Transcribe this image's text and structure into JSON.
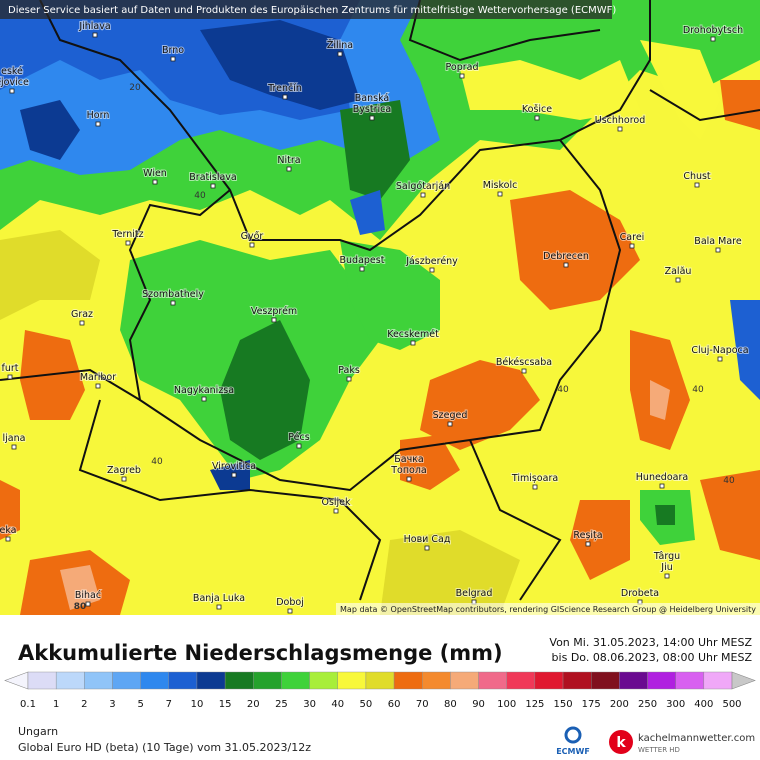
{
  "header": {
    "notice": "Dieser Service basiert auf Daten und Produkten des Europäischen Zentrums für mittelfristige Wettervorhersage (ECMWF)"
  },
  "map": {
    "cities": [
      [
        "Jihlava"
      ],
      [
        "Brno"
      ],
      [
        "Žilina"
      ],
      [
        "Poprad"
      ],
      [
        "Drohobytsch"
      ],
      [
        "eské",
        "ějovice"
      ],
      [
        "Trenčín"
      ],
      [
        "Banská",
        "Bystrica"
      ],
      [
        "Horn"
      ],
      [
        "Košice"
      ],
      [
        "Uschhorod"
      ],
      [
        "Nitra"
      ],
      [
        "Wien"
      ],
      [
        "Bratislava"
      ],
      [
        "Salgótarján"
      ],
      [
        "Miskolc"
      ],
      [
        "Chust"
      ],
      [
        "Ternitz"
      ],
      [
        "Győr"
      ],
      [
        "Carei"
      ],
      [
        "Bala Mare"
      ],
      [
        "Budapest"
      ],
      [
        "Jászberény"
      ],
      [
        "Debrecen"
      ],
      [
        "Szombathely"
      ],
      [
        "Zalău"
      ],
      [
        "Graz"
      ],
      [
        "Veszprém"
      ],
      [
        "Kecskemét"
      ],
      [
        "Cluj-Napoca"
      ],
      [
        "furt"
      ],
      [
        "Békéscsaba"
      ],
      [
        "Maribor"
      ],
      [
        "Paks"
      ],
      [
        "Nagykanizsa"
      ],
      [
        "Szeged"
      ],
      [
        "ljana"
      ],
      [
        "Pécs"
      ],
      [
        "Бачка",
        "Топола"
      ],
      [
        "Zagreb"
      ],
      [
        "Virovitica"
      ],
      [
        "Timișoara"
      ],
      [
        "Hunedoara"
      ],
      [
        "Osijek"
      ],
      [
        "Reșița"
      ],
      [
        "Нови Сад"
      ],
      [
        "Târgu",
        "Jiu"
      ],
      [
        "Bihać"
      ],
      [
        "Banja Luka"
      ],
      [
        "Doboj"
      ],
      [
        "Belgrad"
      ],
      [
        "Drobeta"
      ],
      [
        "eka"
      ]
    ],
    "contour_labels": [
      "20",
      "40",
      "40",
      "40",
      "40",
      "40",
      "80"
    ],
    "attribution": "Map data © OpenStreetMap contributors, rendering GIScience Research Group @ Heidelberg University"
  },
  "title": "Akkumulierte Niederschlagsmenge (mm)",
  "period": [
    "Von Mi. 31.05.2023, 14:00 Uhr MESZ",
    "bis Do. 08.06.2023, 08:00 Uhr MESZ"
  ],
  "legend": {
    "labels": [
      0.1,
      1,
      2,
      3,
      5,
      7,
      10,
      15,
      20,
      25,
      30,
      40,
      50,
      60,
      70,
      80,
      90,
      100,
      125,
      150,
      175,
      200,
      250,
      300,
      400,
      500
    ],
    "colors": [
      "#f4f4fc",
      "#dcdcf6",
      "#bcd8fa",
      "#90c4f8",
      "#5ea6f4",
      "#2f88ee",
      "#1d60d2",
      "#0c3a92",
      "#177a22",
      "#25a22c",
      "#3fd23a",
      "#a8ee3a",
      "#f8f83a",
      "#e0dc2a",
      "#ee6c10",
      "#f48a2e",
      "#f5aa78",
      "#f06a8a",
      "#f03858",
      "#e01830",
      "#b01020",
      "#80101e",
      "#6a0a90",
      "#b020e0",
      "#d860f0",
      "#f0a8f8",
      "#f8e4fa",
      "#c8c8c8"
    ]
  },
  "footer": {
    "region": "Ungarn",
    "model": "Global Euro HD (beta)  (10 Tage)  vom  31.05.2023/12z"
  },
  "logos": {
    "ecmwf": "ECMWF",
    "brand": "kachelmannwetter.com",
    "brand_sub": "WETTER HD"
  }
}
